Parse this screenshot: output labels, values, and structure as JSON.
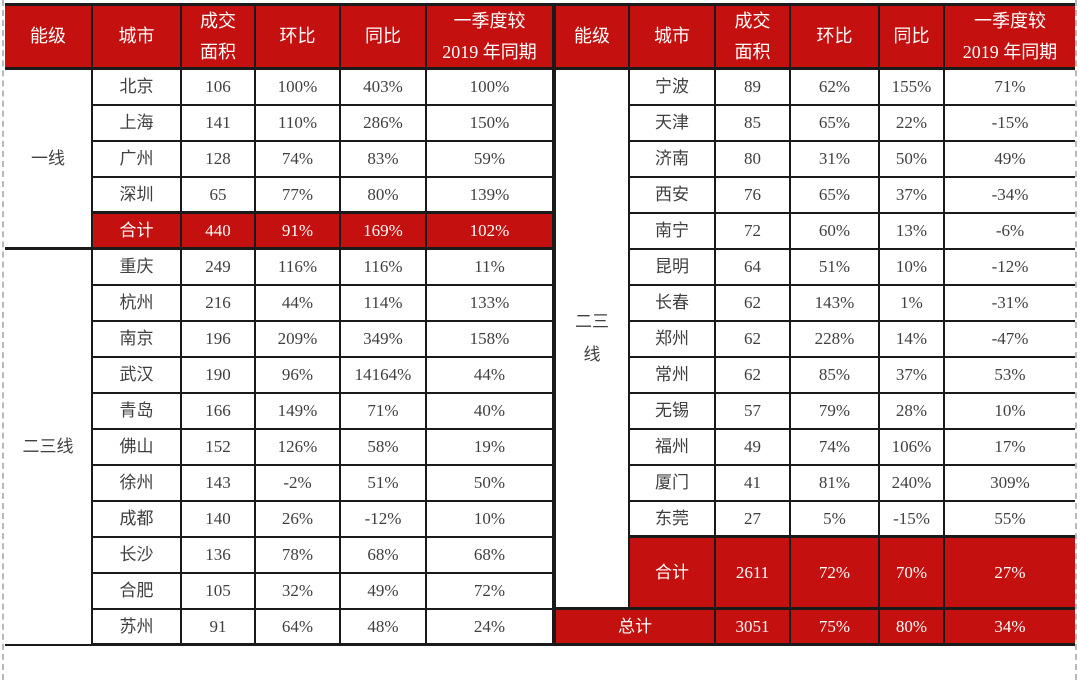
{
  "theme": {
    "header_red": "#c4100e",
    "total_row_red": "#c4100e",
    "border_black": "#1a1a1a",
    "body_text": "#3f3f3f",
    "header_text": "#ffffff",
    "pagebreak_dash_gray": "#b9b9b9"
  },
  "chart_data": {
    "type": "table",
    "title": "",
    "layout_hint": "two mirrored half-tables side by side; red header row; red subtotal/grand-total rows; dashed page-break lines at left and right edges",
    "columns": {
      "tier": "能级",
      "city": "城市",
      "area_l1": "成交",
      "area_l2": "面积",
      "mom": "环比",
      "yoy": "同比",
      "q1_l1": "一季度较",
      "q1_l2": "2019 年同期"
    },
    "left": {
      "groups": [
        {
          "tier": "一线",
          "rows": [
            {
              "city": "北京",
              "area": "106",
              "mom": "100%",
              "yoy": "403%",
              "vs2019": "100%"
            },
            {
              "city": "上海",
              "area": "141",
              "mom": "110%",
              "yoy": "286%",
              "vs2019": "150%"
            },
            {
              "city": "广州",
              "area": "128",
              "mom": "74%",
              "yoy": "83%",
              "vs2019": "59%"
            },
            {
              "city": "深圳",
              "area": "65",
              "mom": "77%",
              "yoy": "80%",
              "vs2019": "139%"
            }
          ],
          "subtotal": {
            "label": "合计",
            "area": "440",
            "mom": "91%",
            "yoy": "169%",
            "vs2019": "102%"
          }
        },
        {
          "tier": "二三线",
          "rows": [
            {
              "city": "重庆",
              "area": "249",
              "mom": "116%",
              "yoy": "116%",
              "vs2019": "11%"
            },
            {
              "city": "杭州",
              "area": "216",
              "mom": "44%",
              "yoy": "114%",
              "vs2019": "133%"
            },
            {
              "city": "南京",
              "area": "196",
              "mom": "209%",
              "yoy": "349%",
              "vs2019": "158%"
            },
            {
              "city": "武汉",
              "area": "190",
              "mom": "96%",
              "yoy": "14164%",
              "vs2019": "44%"
            },
            {
              "city": "青岛",
              "area": "166",
              "mom": "149%",
              "yoy": "71%",
              "vs2019": "40%"
            },
            {
              "city": "佛山",
              "area": "152",
              "mom": "126%",
              "yoy": "58%",
              "vs2019": "19%"
            },
            {
              "city": "徐州",
              "area": "143",
              "mom": "-2%",
              "yoy": "51%",
              "vs2019": "50%"
            },
            {
              "city": "成都",
              "area": "140",
              "mom": "26%",
              "yoy": "-12%",
              "vs2019": "10%"
            },
            {
              "city": "长沙",
              "area": "136",
              "mom": "78%",
              "yoy": "68%",
              "vs2019": "68%"
            },
            {
              "city": "合肥",
              "area": "105",
              "mom": "32%",
              "yoy": "49%",
              "vs2019": "72%"
            },
            {
              "city": "苏州",
              "area": "91",
              "mom": "64%",
              "yoy": "48%",
              "vs2019": "24%"
            }
          ],
          "subtotal": null
        }
      ]
    },
    "right": {
      "tier": "二三线",
      "rows": [
        {
          "city": "宁波",
          "area": "89",
          "mom": "62%",
          "yoy": "155%",
          "vs2019": "71%"
        },
        {
          "city": "天津",
          "area": "85",
          "mom": "65%",
          "yoy": "22%",
          "vs2019": "-15%"
        },
        {
          "city": "济南",
          "area": "80",
          "mom": "31%",
          "yoy": "50%",
          "vs2019": "49%"
        },
        {
          "city": "西安",
          "area": "76",
          "mom": "65%",
          "yoy": "37%",
          "vs2019": "-34%"
        },
        {
          "city": "南宁",
          "area": "72",
          "mom": "60%",
          "yoy": "13%",
          "vs2019": "-6%"
        },
        {
          "city": "昆明",
          "area": "64",
          "mom": "51%",
          "yoy": "10%",
          "vs2019": "-12%"
        },
        {
          "city": "长春",
          "area": "62",
          "mom": "143%",
          "yoy": "1%",
          "vs2019": "-31%"
        },
        {
          "city": "郑州",
          "area": "62",
          "mom": "228%",
          "yoy": "14%",
          "vs2019": "-47%"
        },
        {
          "city": "常州",
          "area": "62",
          "mom": "85%",
          "yoy": "37%",
          "vs2019": "53%"
        },
        {
          "city": "无锡",
          "area": "57",
          "mom": "79%",
          "yoy": "28%",
          "vs2019": "10%"
        },
        {
          "city": "福州",
          "area": "49",
          "mom": "74%",
          "yoy": "106%",
          "vs2019": "17%"
        },
        {
          "city": "厦门",
          "area": "41",
          "mom": "81%",
          "yoy": "240%",
          "vs2019": "309%"
        },
        {
          "city": "东莞",
          "area": "27",
          "mom": "5%",
          "yoy": "-15%",
          "vs2019": "55%"
        }
      ],
      "subtotal": {
        "label": "合计",
        "area": "2611",
        "mom": "72%",
        "yoy": "70%",
        "vs2019": "27%"
      },
      "grand_total": {
        "label": "总计",
        "area": "3051",
        "mom": "75%",
        "yoy": "80%",
        "vs2019": "34%"
      }
    }
  }
}
